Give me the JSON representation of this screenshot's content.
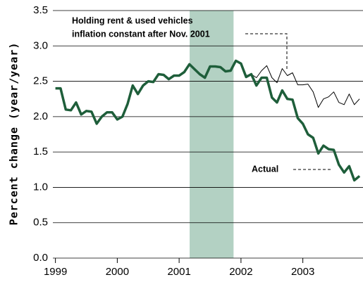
{
  "chart_data": {
    "type": "line",
    "y_label": "Percent change (year/year)",
    "x": [
      1999.0,
      1999.083,
      1999.167,
      1999.25,
      1999.333,
      1999.417,
      1999.5,
      1999.583,
      1999.667,
      1999.75,
      1999.833,
      1999.917,
      2000.0,
      2000.083,
      2000.167,
      2000.25,
      2000.333,
      2000.417,
      2000.5,
      2000.583,
      2000.667,
      2000.75,
      2000.833,
      2000.917,
      2001.0,
      2001.083,
      2001.167,
      2001.25,
      2001.333,
      2001.417,
      2001.5,
      2001.583,
      2001.667,
      2001.75,
      2001.833,
      2001.917,
      2002.0,
      2002.083,
      2002.167,
      2002.25,
      2002.333,
      2002.417,
      2002.5,
      2002.583,
      2002.667,
      2002.75,
      2002.833,
      2002.917,
      2003.0,
      2003.083,
      2003.167,
      2003.25,
      2003.333,
      2003.417,
      2003.5,
      2003.583,
      2003.667,
      2003.75,
      2003.833,
      2003.917
    ],
    "series": [
      {
        "color": "#1e5e3a",
        "width": 3.5,
        "values": [
          2.4,
          2.4,
          2.1,
          2.09,
          2.2,
          2.03,
          2.08,
          2.07,
          1.9,
          2.0,
          2.06,
          2.06,
          1.96,
          2.0,
          2.18,
          2.44,
          2.32,
          2.44,
          2.5,
          2.49,
          2.6,
          2.59,
          2.53,
          2.58,
          2.58,
          2.63,
          2.74,
          2.67,
          2.6,
          2.55,
          2.71,
          2.71,
          2.7,
          2.64,
          2.65,
          2.79,
          2.75,
          2.56,
          2.6,
          2.44,
          2.55,
          2.55,
          2.27,
          2.2,
          2.37,
          2.25,
          2.24,
          1.98,
          1.9,
          1.75,
          1.7,
          1.48,
          1.59,
          1.54,
          1.53,
          1.32,
          1.21,
          1.3,
          1.1,
          1.16
        ]
      },
      {
        "color": "#000000",
        "width": 1,
        "values": [
          null,
          null,
          null,
          null,
          null,
          null,
          null,
          null,
          null,
          null,
          null,
          null,
          null,
          null,
          null,
          null,
          null,
          null,
          null,
          null,
          null,
          null,
          null,
          null,
          null,
          null,
          null,
          null,
          null,
          null,
          null,
          null,
          null,
          null,
          2.65,
          2.79,
          2.75,
          2.58,
          2.6,
          2.55,
          2.65,
          2.72,
          2.55,
          2.48,
          2.68,
          2.58,
          2.62,
          2.45,
          2.45,
          2.46,
          2.35,
          2.13,
          2.25,
          2.28,
          2.35,
          2.2,
          2.17,
          2.32,
          2.17,
          2.25
        ]
      }
    ],
    "shaded_region": [
      2001.17,
      2001.88
    ],
    "shade_color": "#b3d1c3",
    "annotations": [
      "Holding rent & used vehicles",
      "inflation constant after Nov. 2001",
      "Actual"
    ],
    "xlim": [
      1998.97,
      2003.95
    ],
    "xticks": [
      1999,
      2000,
      2001,
      2002,
      2003
    ],
    "ylim": [
      0,
      3.5
    ],
    "yticks": [
      {
        "value": 0,
        "label": "0.0"
      },
      {
        "value": 0.5,
        "label": "0.5"
      },
      {
        "value": 1,
        "label": "1.0"
      },
      {
        "value": 1.5,
        "label": "1.5"
      },
      {
        "value": 2,
        "label": "2.0"
      },
      {
        "value": 2.5,
        "label": "2.5"
      },
      {
        "value": 3,
        "label": "3.0"
      },
      {
        "value": 3.5,
        "label": "3.5"
      }
    ],
    "grid": true
  }
}
